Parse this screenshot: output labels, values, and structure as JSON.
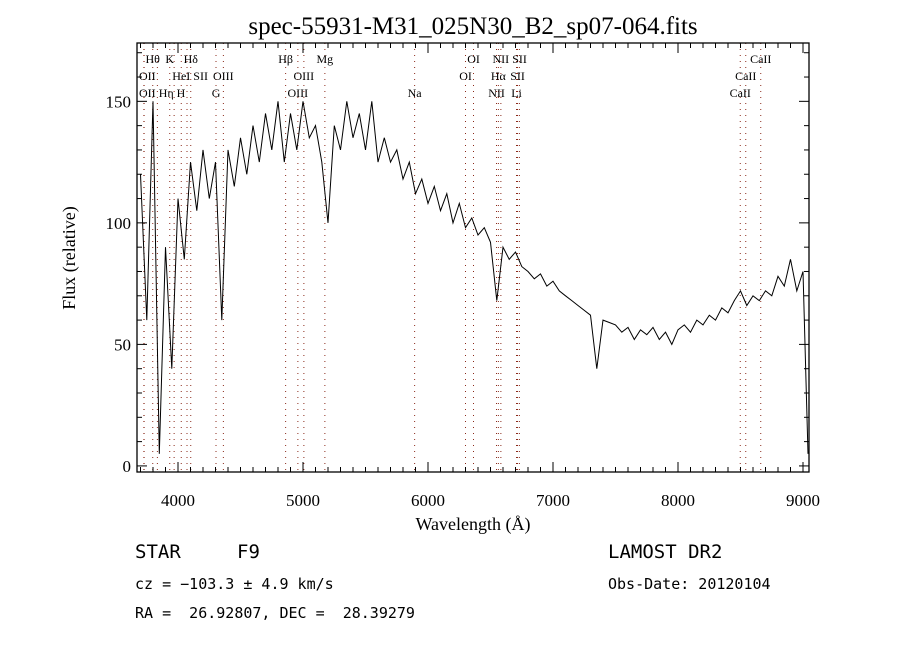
{
  "chart_data": {
    "type": "line",
    "title": "spec-55931-M31_025N30_B2_sp07-064.fits",
    "xlabel": "Wavelength (Å)",
    "ylabel": "Flux (relative)",
    "xlim": [
      3672,
      9048
    ],
    "ylim": [
      -2.5,
      174
    ],
    "xticks": [
      4000,
      5000,
      6000,
      7000,
      8000,
      9000
    ],
    "xtick_labels": [
      "4000",
      "5000",
      "6000",
      "7000",
      "8000",
      "9000"
    ],
    "yticks": [
      0,
      50,
      100,
      150
    ],
    "ytick_labels": [
      "0",
      "50",
      "100",
      "150"
    ],
    "grid": false,
    "line_color": "#000000",
    "marker_color": "#8b2a1a",
    "x": [
      3700,
      3750,
      3800,
      3850,
      3900,
      3950,
      4000,
      4050,
      4100,
      4150,
      4200,
      4250,
      4300,
      4350,
      4400,
      4450,
      4500,
      4550,
      4600,
      4650,
      4700,
      4750,
      4800,
      4850,
      4900,
      4950,
      5000,
      5050,
      5100,
      5150,
      5200,
      5250,
      5300,
      5350,
      5400,
      5450,
      5500,
      5550,
      5600,
      5650,
      5700,
      5750,
      5800,
      5850,
      5900,
      5950,
      6000,
      6050,
      6100,
      6150,
      6200,
      6250,
      6300,
      6350,
      6400,
      6450,
      6500,
      6550,
      6600,
      6650,
      6700,
      6750,
      6800,
      6850,
      6900,
      6950,
      7000,
      7050,
      7100,
      7150,
      7200,
      7250,
      7300,
      7350,
      7400,
      7450,
      7500,
      7550,
      7600,
      7650,
      7700,
      7750,
      7800,
      7850,
      7900,
      7950,
      8000,
      8050,
      8100,
      8150,
      8200,
      8250,
      8300,
      8350,
      8400,
      8450,
      8500,
      8550,
      8600,
      8650,
      8700,
      8750,
      8800,
      8850,
      8900,
      8950,
      9000,
      9040
    ],
    "y": [
      120,
      60,
      150,
      5,
      90,
      40,
      110,
      85,
      125,
      105,
      130,
      110,
      125,
      60,
      130,
      115,
      135,
      120,
      140,
      125,
      145,
      130,
      150,
      125,
      145,
      130,
      150,
      135,
      140,
      125,
      100,
      140,
      130,
      150,
      135,
      145,
      130,
      150,
      125,
      135,
      125,
      130,
      118,
      125,
      112,
      118,
      108,
      115,
      105,
      112,
      100,
      108,
      98,
      102,
      95,
      98,
      92,
      68,
      90,
      85,
      88,
      82,
      80,
      77,
      79,
      74,
      76,
      72,
      70,
      68,
      66,
      64,
      62,
      40,
      60,
      59,
      58,
      55,
      57,
      52,
      56,
      54,
      57,
      52,
      55,
      50,
      56,
      58,
      55,
      60,
      58,
      62,
      60,
      65,
      63,
      68,
      72,
      66,
      70,
      68,
      72,
      70,
      78,
      74,
      85,
      72,
      80,
      5
    ],
    "line_markers": [
      {
        "label": "Hθ",
        "wave": 3798,
        "row": 1
      },
      {
        "label": "K",
        "wave": 3934,
        "row": 1
      },
      {
        "label": "Hδ",
        "wave": 4102,
        "row": 1
      },
      {
        "label": "Hβ",
        "wave": 4861,
        "row": 1
      },
      {
        "label": "Mg",
        "wave": 5175,
        "row": 1
      },
      {
        "label": "OI",
        "wave": 6364,
        "row": 1
      },
      {
        "label": "NII",
        "wave": 6583,
        "row": 1
      },
      {
        "label": "SII",
        "wave": 6731,
        "row": 1
      },
      {
        "label": "CaII",
        "wave": 8662,
        "row": 1
      },
      {
        "label": "OII",
        "wave": 3727,
        "row": 2
      },
      {
        "label": "HeI",
        "wave": 4026,
        "row": 2
      },
      {
        "label": "SII",
        "wave": 4072,
        "row": 2
      },
      {
        "label": "OIII",
        "wave": 4363,
        "row": 2
      },
      {
        "label": "OIII",
        "wave": 5007,
        "row": 2
      },
      {
        "label": "OI",
        "wave": 6300,
        "row": 2
      },
      {
        "label": "Hα",
        "wave": 6563,
        "row": 2
      },
      {
        "label": "SII",
        "wave": 6716,
        "row": 2
      },
      {
        "label": "CaII",
        "wave": 8542,
        "row": 2
      },
      {
        "label": "OII",
        "wave": 3729,
        "row": 3
      },
      {
        "label": "Hη",
        "wave": 3835,
        "row": 3
      },
      {
        "label": "H",
        "wave": 3969,
        "row": 3
      },
      {
        "label": "G",
        "wave": 4304,
        "row": 3
      },
      {
        "label": "OIII",
        "wave": 4959,
        "row": 3
      },
      {
        "label": "Na",
        "wave": 5893,
        "row": 3
      },
      {
        "label": "NII",
        "wave": 6548,
        "row": 3
      },
      {
        "label": "Li",
        "wave": 6708,
        "row": 3
      },
      {
        "label": "CaII",
        "wave": 8498,
        "row": 3
      }
    ]
  },
  "info": {
    "object_class": "STAR",
    "subclass": "F9",
    "survey": "LAMOST DR2",
    "cz": "cz = −103.3 ± 4.9 km/s",
    "obs_date": "Obs-Date: 20120104",
    "coords": "RA =  26.92807, DEC =  28.39279"
  }
}
